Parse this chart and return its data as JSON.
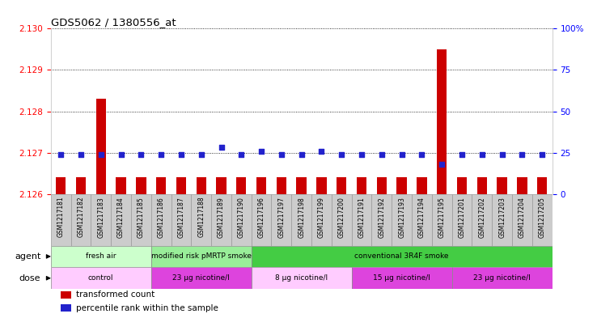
{
  "title": "GDS5062 / 1380556_at",
  "samples": [
    "GSM1217181",
    "GSM1217182",
    "GSM1217183",
    "GSM1217184",
    "GSM1217185",
    "GSM1217186",
    "GSM1217187",
    "GSM1217188",
    "GSM1217189",
    "GSM1217190",
    "GSM1217196",
    "GSM1217197",
    "GSM1217198",
    "GSM1217199",
    "GSM1217200",
    "GSM1217191",
    "GSM1217192",
    "GSM1217193",
    "GSM1217194",
    "GSM1217195",
    "GSM1217201",
    "GSM1217202",
    "GSM1217203",
    "GSM1217204",
    "GSM1217205"
  ],
  "transformed_counts": [
    2.1264,
    2.1264,
    2.1283,
    2.1264,
    2.1264,
    2.1264,
    2.1264,
    2.1264,
    2.1264,
    2.1264,
    2.1264,
    2.1264,
    2.1264,
    2.1264,
    2.1264,
    2.1264,
    2.1264,
    2.1264,
    2.1264,
    2.1295,
    2.1264,
    2.1264,
    2.1264,
    2.1264,
    2.1264
  ],
  "percentile_ranks": [
    24,
    24,
    24,
    24,
    24,
    24,
    24,
    24,
    28,
    24,
    26,
    24,
    24,
    26,
    24,
    24,
    24,
    24,
    24,
    18,
    24,
    24,
    24,
    24,
    24
  ],
  "ylim": [
    2.126,
    2.13
  ],
  "yticks": [
    2.126,
    2.127,
    2.128,
    2.129,
    2.13
  ],
  "right_yticks": [
    0,
    25,
    50,
    75,
    100
  ],
  "bar_color": "#cc0000",
  "dot_color": "#2222cc",
  "agent_groups": [
    {
      "label": "fresh air",
      "start": 0,
      "end": 5,
      "color": "#ccffcc"
    },
    {
      "label": "modified risk pMRTP smoke",
      "start": 5,
      "end": 10,
      "color": "#99ee99"
    },
    {
      "label": "conventional 3R4F smoke",
      "start": 10,
      "end": 25,
      "color": "#44cc44"
    }
  ],
  "dose_groups": [
    {
      "label": "control",
      "start": 0,
      "end": 5,
      "color": "#ffccff"
    },
    {
      "label": "23 μg nicotine/l",
      "start": 5,
      "end": 10,
      "color": "#dd44dd"
    },
    {
      "label": "8 μg nicotine/l",
      "start": 10,
      "end": 15,
      "color": "#ffccff"
    },
    {
      "label": "15 μg nicotine/l",
      "start": 15,
      "end": 20,
      "color": "#dd44dd"
    },
    {
      "label": "23 μg nicotine/l",
      "start": 20,
      "end": 25,
      "color": "#dd44dd"
    }
  ],
  "sample_cell_color": "#cccccc",
  "sample_cell_border": "#999999",
  "legend_items": [
    {
      "label": "transformed count",
      "color": "#cc0000"
    },
    {
      "label": "percentile rank within the sample",
      "color": "#2222cc"
    }
  ]
}
